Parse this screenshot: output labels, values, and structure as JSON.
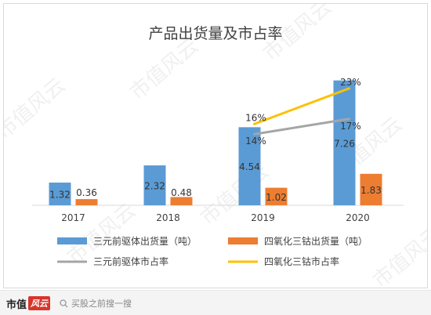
{
  "chart_data": {
    "type": "bar",
    "title": "产品出货量及市占率",
    "categories": [
      "2017",
      "2018",
      "2019",
      "2020"
    ],
    "series": [
      {
        "name": "三元前驱体出货量（吨）",
        "type": "bar",
        "color": "#5b9bd5",
        "values": [
          1.32,
          2.32,
          4.54,
          7.26
        ],
        "labels": [
          "1.32",
          "2.32",
          "4.54",
          "7.26"
        ]
      },
      {
        "name": "四氧化三钴出货量（吨）",
        "type": "bar",
        "color": "#ed7d31",
        "values": [
          0.36,
          0.48,
          1.02,
          1.83
        ],
        "labels": [
          "0.36",
          "0.48",
          "1.02",
          "1.83"
        ]
      },
      {
        "name": "三元前驱体市占率",
        "type": "line",
        "color": "#a5a5a5",
        "x": [
          "2019",
          "2020"
        ],
        "values": [
          14,
          17
        ],
        "labels": [
          "14%",
          "17%"
        ]
      },
      {
        "name": "四氧化三钴市占率",
        "type": "line",
        "color": "#ffc000",
        "x": [
          "2019",
          "2020"
        ],
        "values": [
          16,
          23
        ],
        "labels": [
          "16%",
          "23%"
        ]
      }
    ],
    "bar_ylim": [
      0,
      8.2
    ],
    "line_ylim": [
      0,
      31
    ],
    "grid": false,
    "legend_position": "bottom"
  },
  "watermark": "市值风云",
  "footer": {
    "brand_main": "市值",
    "brand_badge": "风云",
    "hint_text": "买股之前搜一搜"
  }
}
